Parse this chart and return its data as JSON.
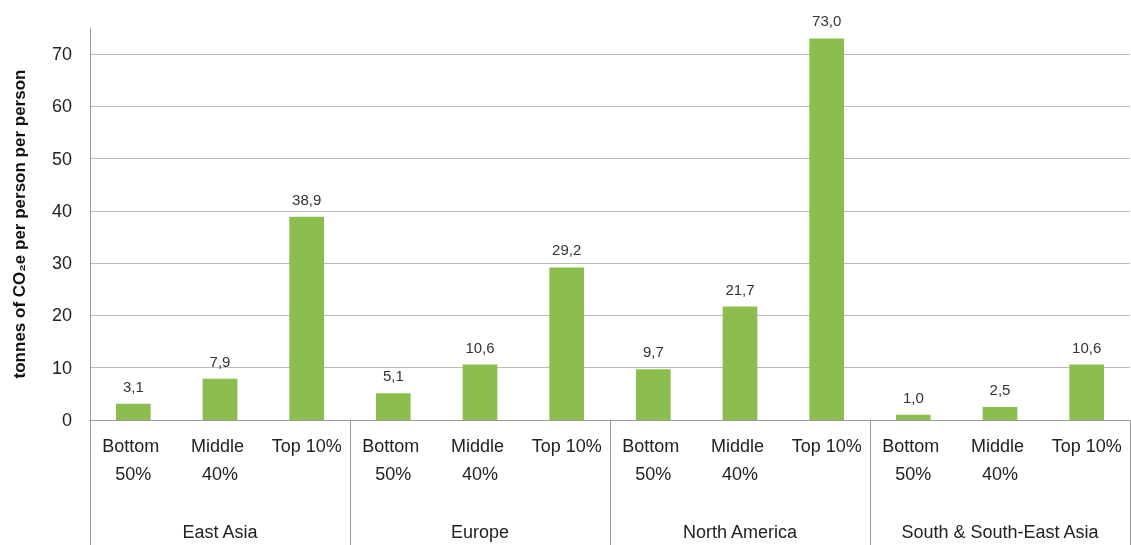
{
  "chart_data": {
    "type": "bar",
    "ylabel": "tonnes of CO₂e per person per person",
    "categories": [
      "Bottom 50%",
      "Middle 40%",
      "Top 10%",
      "Bottom 50%",
      "Middle 40%",
      "Top 10%",
      "Bottom 50%",
      "Middle 40%",
      "Top 10%",
      "Bottom 50%",
      "Middle 40%",
      "Top 10%"
    ],
    "values": [
      3.1,
      7.9,
      38.9,
      5.1,
      10.6,
      29.2,
      9.7,
      21.7,
      73.0,
      1.0,
      2.5,
      10.6
    ],
    "value_labels": [
      "3,1",
      "7,9",
      "38,9",
      "5,1",
      "10,6",
      "29,2",
      "9,7",
      "21,7",
      "73,0",
      "1,0",
      "2,5",
      "10,6"
    ],
    "color": "#8bbd4f",
    "annotations": [
      "East Asia",
      "Europe",
      "North America",
      "South & South-East Asia"
    ],
    "ylim": [
      0,
      75
    ],
    "yticks": [
      0,
      10,
      20,
      30,
      40,
      50,
      60,
      70
    ],
    "grid": "y"
  }
}
